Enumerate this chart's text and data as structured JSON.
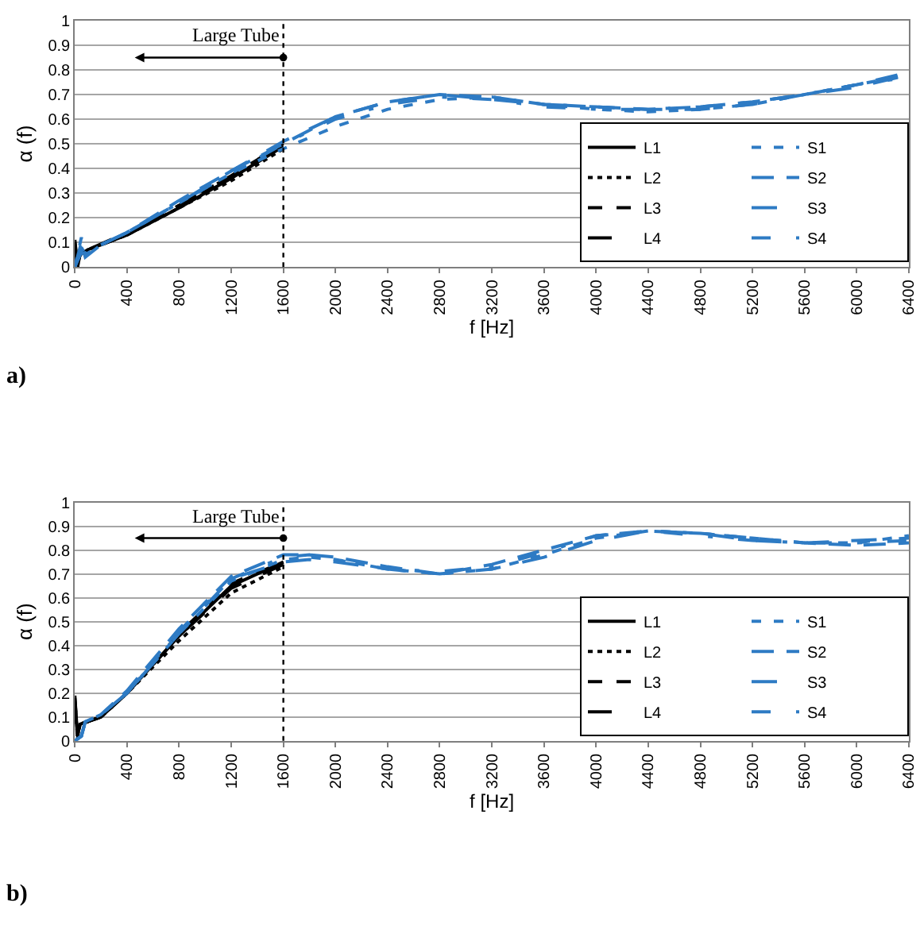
{
  "chart_data": [
    {
      "type": "line",
      "xlabel": "f [Hz]",
      "ylabel": "α (f)",
      "annotations": [
        "a)"
      ],
      "xlim": [
        0,
        6400
      ],
      "xticks": [
        0,
        400,
        800,
        1200,
        1600,
        2000,
        2400,
        2800,
        3200,
        3600,
        4000,
        4400,
        4800,
        5200,
        5600,
        6000,
        6400
      ],
      "ylim": [
        0,
        1
      ],
      "yticks": [
        0,
        0.1,
        0.2,
        0.3,
        0.4,
        0.5,
        0.6,
        0.7,
        0.8,
        0.9,
        1
      ],
      "grid": "y",
      "legend": "bottom right",
      "marker": "none",
      "ref_lines": [
        {
          "axis": "x",
          "value": 1600,
          "label": "Large Tube",
          "color": "#000000",
          "line_style": "dotted"
        }
      ],
      "series": [
        {
          "name": "L1",
          "color": "#000000",
          "line_style": "solid",
          "x": [
            0,
            20,
            40,
            100,
            400,
            800,
            1200,
            1600
          ],
          "values": [
            0.1,
            0.0,
            0.05,
            0.07,
            0.13,
            0.24,
            0.36,
            0.49
          ]
        },
        {
          "name": "L2",
          "color": "#000000",
          "line_style": "dotted",
          "x": [
            0,
            20,
            40,
            100,
            400,
            800,
            1200,
            1600
          ],
          "values": [
            0.08,
            0.0,
            0.05,
            0.07,
            0.13,
            0.24,
            0.35,
            0.48
          ]
        },
        {
          "name": "L3",
          "color": "#000000",
          "line_style": "dashed",
          "x": [
            0,
            20,
            40,
            100,
            400,
            800,
            1200,
            1600
          ],
          "values": [
            0.11,
            0.01,
            0.05,
            0.07,
            0.13,
            0.25,
            0.37,
            0.5
          ]
        },
        {
          "name": "L4",
          "color": "#000000",
          "line_style": "dashed",
          "x": [
            0,
            20,
            40,
            100,
            400,
            800,
            1200,
            1600
          ],
          "values": [
            0.09,
            0.0,
            0.06,
            0.07,
            0.14,
            0.25,
            0.37,
            0.5
          ]
        },
        {
          "name": "S1",
          "color": "#2e7bc4",
          "line_style": "dashed",
          "x": [
            0,
            50,
            80,
            200,
            400,
            800,
            1200,
            1600,
            2000,
            2400,
            2800,
            3200,
            3600,
            4000,
            4400,
            4800,
            5200,
            5600,
            6000,
            6400
          ],
          "values": [
            0.0,
            0.12,
            0.05,
            0.09,
            0.14,
            0.26,
            0.38,
            0.48,
            0.57,
            0.64,
            0.68,
            0.69,
            0.66,
            0.64,
            0.63,
            0.64,
            0.66,
            0.7,
            0.74,
            0.78
          ]
        },
        {
          "name": "S2",
          "color": "#2e7bc4",
          "line_style": "dashed",
          "x": [
            0,
            50,
            80,
            200,
            400,
            800,
            1200,
            1600,
            2000,
            2400,
            2800,
            3200,
            3600,
            4000,
            4400,
            4800,
            5200,
            5600,
            6000,
            6400
          ],
          "values": [
            0.0,
            0.1,
            0.04,
            0.09,
            0.14,
            0.27,
            0.39,
            0.5,
            0.61,
            0.67,
            0.7,
            0.69,
            0.66,
            0.65,
            0.64,
            0.65,
            0.67,
            0.7,
            0.74,
            0.79
          ]
        },
        {
          "name": "S3",
          "color": "#2e7bc4",
          "line_style": "dashed",
          "x": [
            0,
            50,
            80,
            200,
            400,
            800,
            1200,
            1600,
            2000,
            2400,
            2800,
            3200,
            3600,
            4000,
            4400,
            4800,
            5200,
            5600,
            6000,
            6400
          ],
          "values": [
            0.0,
            0.08,
            0.05,
            0.09,
            0.14,
            0.26,
            0.39,
            0.51,
            0.61,
            0.67,
            0.7,
            0.68,
            0.66,
            0.65,
            0.64,
            0.64,
            0.66,
            0.7,
            0.73,
            0.78
          ]
        },
        {
          "name": "S4",
          "color": "#2e7bc4",
          "line_style": "dashed",
          "x": [
            0,
            50,
            80,
            200,
            400,
            800,
            1200,
            1600,
            2000,
            2400,
            2800,
            3200,
            3600,
            4000,
            4400,
            4800,
            5200,
            5600,
            6000,
            6400
          ],
          "values": [
            0.0,
            0.06,
            0.04,
            0.09,
            0.14,
            0.26,
            0.38,
            0.5,
            0.6,
            0.66,
            0.69,
            0.68,
            0.65,
            0.64,
            0.64,
            0.65,
            0.67,
            0.7,
            0.74,
            0.77
          ]
        }
      ]
    },
    {
      "type": "line",
      "xlabel": "f [Hz]",
      "ylabel": "α (f)",
      "annotations": [
        "b)"
      ],
      "xlim": [
        0,
        6400
      ],
      "xticks": [
        0,
        400,
        800,
        1200,
        1600,
        2000,
        2400,
        2800,
        3200,
        3600,
        4000,
        4400,
        4800,
        5200,
        5600,
        6000,
        6400
      ],
      "ylim": [
        0,
        1
      ],
      "yticks": [
        0,
        0.1,
        0.2,
        0.3,
        0.4,
        0.5,
        0.6,
        0.7,
        0.8,
        0.9,
        1
      ],
      "grid": "y",
      "legend": "bottom right",
      "marker": "none",
      "ref_lines": [
        {
          "axis": "x",
          "value": 1600,
          "label": "Large Tube",
          "color": "#000000",
          "line_style": "dotted"
        }
      ],
      "series": [
        {
          "name": "L1",
          "color": "#000000",
          "line_style": "solid",
          "x": [
            0,
            20,
            40,
            200,
            400,
            800,
            1200,
            1600
          ],
          "values": [
            0.19,
            0.02,
            0.07,
            0.1,
            0.2,
            0.44,
            0.65,
            0.75
          ]
        },
        {
          "name": "L2",
          "color": "#000000",
          "line_style": "dotted",
          "x": [
            0,
            20,
            40,
            200,
            400,
            800,
            1200,
            1600
          ],
          "values": [
            0.17,
            0.01,
            0.07,
            0.1,
            0.2,
            0.42,
            0.62,
            0.73
          ]
        },
        {
          "name": "L3",
          "color": "#000000",
          "line_style": "dashed",
          "x": [
            0,
            20,
            40,
            200,
            400,
            800,
            1200,
            1600
          ],
          "values": [
            0.18,
            0.02,
            0.07,
            0.1,
            0.2,
            0.45,
            0.66,
            0.75
          ]
        },
        {
          "name": "L4",
          "color": "#000000",
          "line_style": "dashed",
          "x": [
            0,
            20,
            40,
            200,
            400,
            800,
            1200,
            1600
          ],
          "values": [
            0.16,
            0.02,
            0.07,
            0.1,
            0.2,
            0.44,
            0.64,
            0.74
          ]
        },
        {
          "name": "S1",
          "color": "#2e7bc4",
          "line_style": "dashed",
          "x": [
            0,
            50,
            80,
            200,
            400,
            800,
            1200,
            1600,
            1800,
            2000,
            2400,
            2800,
            3200,
            3600,
            4000,
            4400,
            4800,
            5200,
            5600,
            6000,
            6400
          ],
          "values": [
            0.0,
            0.02,
            0.08,
            0.11,
            0.2,
            0.45,
            0.67,
            0.76,
            0.77,
            0.76,
            0.72,
            0.7,
            0.72,
            0.78,
            0.85,
            0.88,
            0.87,
            0.85,
            0.83,
            0.83,
            0.86
          ]
        },
        {
          "name": "S2",
          "color": "#2e7bc4",
          "line_style": "dashed",
          "x": [
            0,
            50,
            80,
            200,
            400,
            800,
            1200,
            1600,
            1800,
            2000,
            2400,
            2800,
            3200,
            3600,
            4000,
            4400,
            4800,
            5200,
            5600,
            6000,
            6400
          ],
          "values": [
            0.0,
            0.02,
            0.08,
            0.11,
            0.21,
            0.47,
            0.69,
            0.78,
            0.78,
            0.77,
            0.73,
            0.7,
            0.74,
            0.8,
            0.86,
            0.88,
            0.87,
            0.85,
            0.83,
            0.82,
            0.83
          ]
        },
        {
          "name": "S3",
          "color": "#2e7bc4",
          "line_style": "dashed",
          "x": [
            0,
            50,
            80,
            200,
            400,
            800,
            1200,
            1600,
            1800,
            2000,
            2400,
            2800,
            3200,
            3600,
            4000,
            4400,
            4800,
            5200,
            5600,
            6000,
            6400
          ],
          "values": [
            0.0,
            0.02,
            0.08,
            0.11,
            0.2,
            0.45,
            0.68,
            0.75,
            0.76,
            0.75,
            0.72,
            0.7,
            0.72,
            0.77,
            0.84,
            0.88,
            0.87,
            0.84,
            0.83,
            0.84,
            0.85
          ]
        },
        {
          "name": "S4",
          "color": "#2e7bc4",
          "line_style": "dashed",
          "x": [
            0,
            50,
            80,
            200,
            400,
            800,
            1200,
            1600,
            1800,
            2000,
            2400,
            2800,
            3200,
            3600,
            4000,
            4400,
            4800,
            5200,
            5600,
            6000,
            6400
          ],
          "values": [
            0.0,
            0.02,
            0.08,
            0.11,
            0.2,
            0.46,
            0.68,
            0.77,
            0.78,
            0.76,
            0.72,
            0.71,
            0.73,
            0.79,
            0.86,
            0.88,
            0.86,
            0.84,
            0.83,
            0.83,
            0.84
          ]
        }
      ]
    }
  ]
}
